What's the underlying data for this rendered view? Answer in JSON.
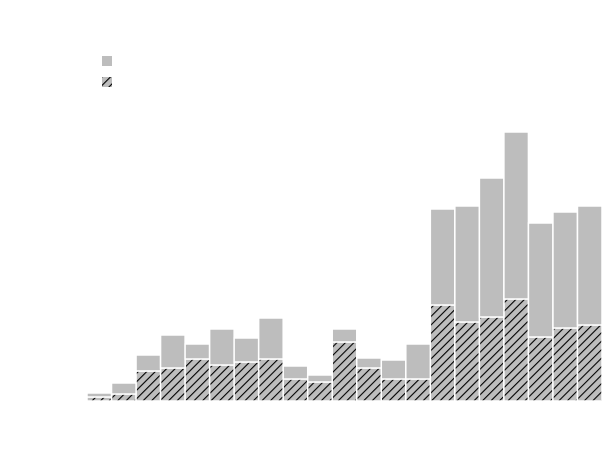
{
  "chart_data": {
    "type": "bar",
    "stacked": true,
    "legend": "upper left",
    "categories": [
      null,
      null,
      null,
      null,
      null,
      null,
      null,
      null,
      null,
      null,
      null,
      null,
      null,
      null,
      null,
      null,
      null,
      null,
      null,
      null,
      null
    ],
    "series": [
      {
        "color": "#bdbdbd",
        "hatch": "//",
        "values": [
          4,
          7,
          30,
          33,
          42,
          36,
          39,
          42,
          22,
          19,
          59,
          33,
          22,
          22,
          96,
          79,
          84,
          102,
          64,
          73,
          76
        ]
      },
      {
        "color": "#bdbdbd",
        "values": [
          4,
          11,
          16,
          33,
          15,
          36,
          24,
          41,
          13,
          7,
          13,
          10,
          19,
          35,
          96,
          116,
          139,
          167,
          114,
          116,
          119
        ]
      }
    ],
    "ylim": [
      0,
      270
    ]
  }
}
